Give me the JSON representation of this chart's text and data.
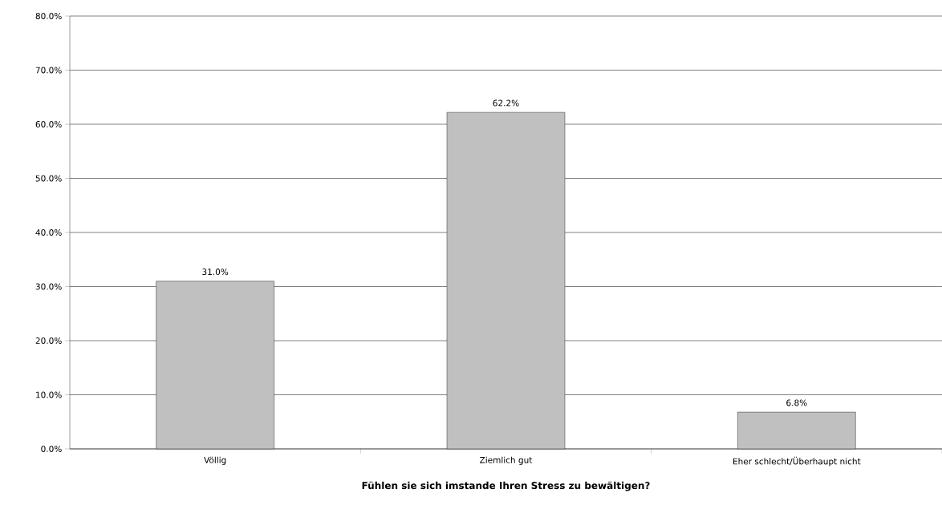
{
  "chart_data": {
    "type": "bar",
    "xlabel": "Fühlen sie sich imstande Ihren Stress zu bewältigen?",
    "categories": [
      "Völlig",
      "Ziemlich gut",
      "Eher schlecht/Überhaupt nicht"
    ],
    "values": [
      31.0,
      62.2,
      6.8
    ],
    "value_labels": [
      "31.0%",
      "62.2%",
      "6.8%"
    ],
    "color": "#c0c0c0",
    "ylim": [
      0,
      80
    ],
    "yticks": [
      {
        "value": 0,
        "label": "0.0%"
      },
      {
        "value": 10,
        "label": "10.0%"
      },
      {
        "value": 20,
        "label": "20.0%"
      },
      {
        "value": 30,
        "label": "30.0%"
      },
      {
        "value": 40,
        "label": "40.0%"
      },
      {
        "value": 50,
        "label": "50.0%"
      },
      {
        "value": 60,
        "label": "60.0%"
      },
      {
        "value": 70,
        "label": "70.0%"
      },
      {
        "value": 80,
        "label": "80.0%"
      }
    ],
    "grid": "y"
  }
}
